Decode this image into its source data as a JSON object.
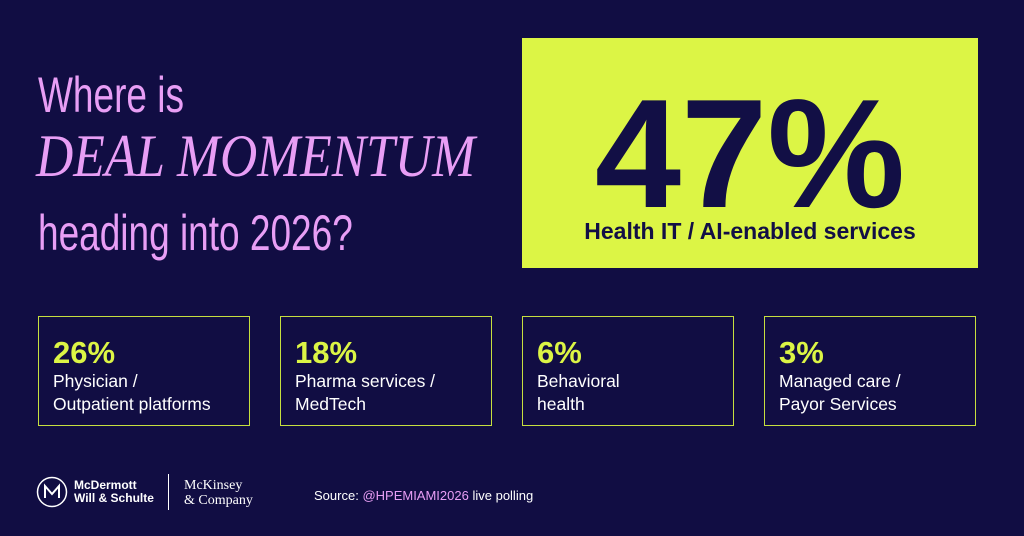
{
  "headline": {
    "lines": [
      "Where is",
      "DEAL MOMENTUM",
      "heading into 2026?"
    ]
  },
  "top_stat": {
    "value": "47%",
    "label": "Health IT / AI-enabled services"
  },
  "stats": [
    {
      "value": "26%",
      "label_lines": [
        "Physician /",
        "Outpatient platforms"
      ]
    },
    {
      "value": "18%",
      "label_lines": [
        "Pharma services /",
        "MedTech"
      ]
    },
    {
      "value": "6%",
      "label_lines": [
        "Behavioral",
        "health"
      ]
    },
    {
      "value": "3%",
      "label_lines": [
        "Managed care /",
        "Payor Services"
      ]
    }
  ],
  "footer": {
    "logo_1": [
      "McDermott",
      "Will & Schulte"
    ],
    "logo_2": [
      "McKinsey",
      "& Company"
    ],
    "source_prefix": "Source:",
    "source_handle": "@HPEMIAMI2026",
    "source_suffix": "live polling"
  }
}
